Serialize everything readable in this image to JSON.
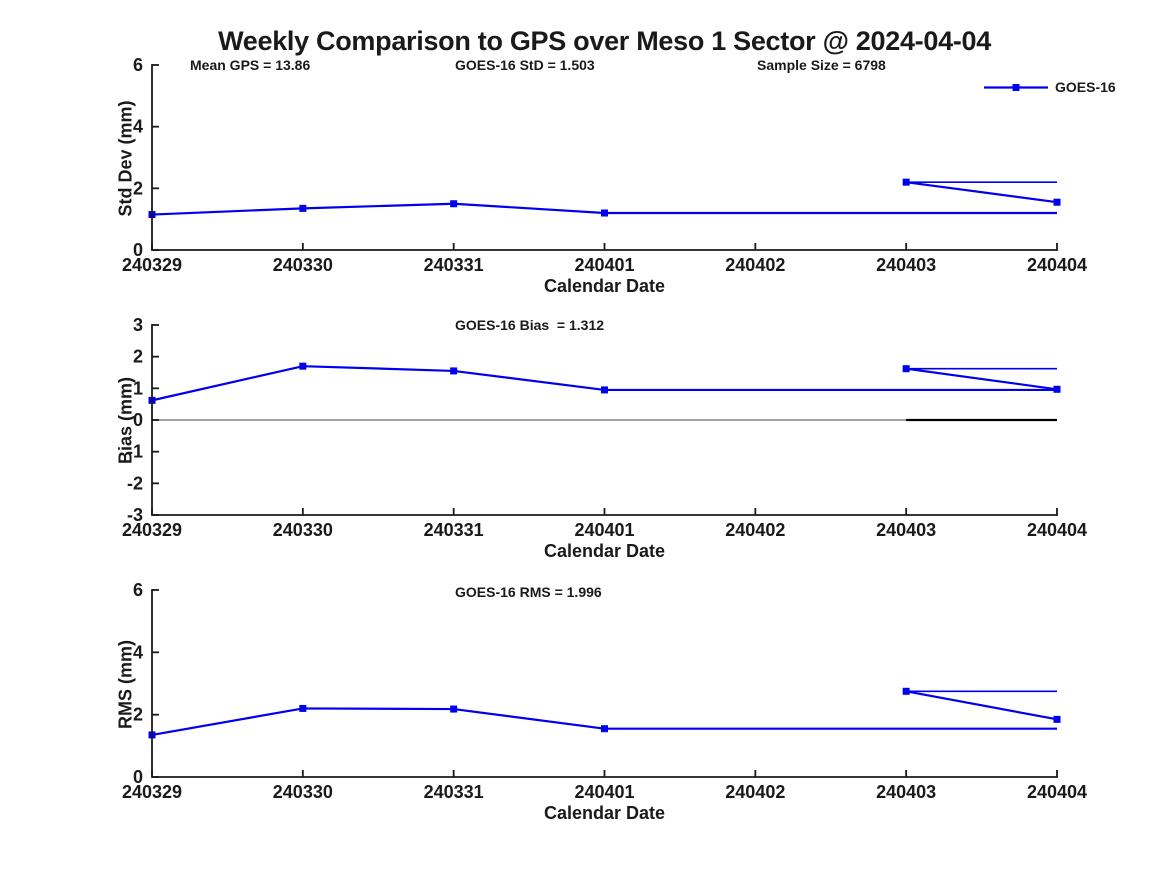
{
  "title": "Weekly Comparison to GPS over Meso 1 Sector @ 2024-04-04",
  "legend": {
    "label": "GOES-16",
    "position": "top-right",
    "box": "off"
  },
  "colors": {
    "line": "#0000EE",
    "axis": "#1a1a1a",
    "text": "#1a1a1a",
    "zero_gray": "#808080",
    "zero_black": "#000000",
    "background": "#ffffff"
  },
  "chart_data": [
    {
      "name": "std-dev",
      "type": "line",
      "series_name": "GOES-16",
      "annotations": [
        "Mean GPS = 13.86",
        "GOES-16 StD = 1.503",
        "Sample Size = 6798"
      ],
      "xlabel": "Calendar Date",
      "ylabel": "Std Dev (mm)",
      "ylim": [
        0,
        6
      ],
      "yticks": [
        6,
        4,
        2,
        0
      ],
      "grid": "off",
      "x_categories": [
        "240329",
        "240330",
        "240331",
        "240401",
        "240402",
        "240403",
        "240404"
      ],
      "segments": [
        {
          "points": [
            [
              0,
              1.15
            ],
            [
              1,
              1.35
            ],
            [
              2,
              1.5
            ],
            [
              3,
              1.2
            ],
            [
              6,
              1.2
            ]
          ],
          "markers": [
            true,
            true,
            true,
            true,
            false
          ],
          "width": 2.2
        },
        {
          "points": [
            [
              5,
              2.2
            ],
            [
              6,
              2.2
            ]
          ],
          "markers": [
            false,
            false
          ],
          "width": 1.6
        },
        {
          "points": [
            [
              5,
              2.2
            ],
            [
              6,
              1.55
            ]
          ],
          "markers": [
            true,
            true
          ],
          "width": 2.2
        }
      ]
    },
    {
      "name": "bias",
      "type": "line",
      "series_name": "GOES-16",
      "annotation": "GOES-16 Bias  = 1.312",
      "xlabel": "Calendar Date",
      "ylabel": "Bias (mm)",
      "ylim": [
        -3,
        3
      ],
      "yticks": [
        3,
        2,
        1,
        0,
        -1,
        -2,
        -3
      ],
      "grid": "off",
      "x_categories": [
        "240329",
        "240330",
        "240331",
        "240401",
        "240402",
        "240403",
        "240404"
      ],
      "zero_line": {
        "gray_span": [
          0,
          6
        ],
        "black_span": [
          5,
          6
        ]
      },
      "segments": [
        {
          "points": [
            [
              0,
              0.62
            ],
            [
              1,
              1.7
            ],
            [
              2,
              1.55
            ],
            [
              3,
              0.95
            ],
            [
              6,
              0.95
            ]
          ],
          "markers": [
            true,
            true,
            true,
            true,
            false
          ],
          "width": 2.2
        },
        {
          "points": [
            [
              5,
              1.62
            ],
            [
              6,
              1.62
            ]
          ],
          "markers": [
            false,
            false
          ],
          "width": 1.6
        },
        {
          "points": [
            [
              5,
              1.62
            ],
            [
              6,
              0.97
            ]
          ],
          "markers": [
            true,
            true
          ],
          "width": 2.2
        }
      ]
    },
    {
      "name": "rms",
      "type": "line",
      "series_name": "GOES-16",
      "annotation": "GOES-16 RMS = 1.996",
      "xlabel": "Calendar Date",
      "ylabel": "RMS (mm)",
      "ylim": [
        0,
        6
      ],
      "yticks": [
        6,
        4,
        2,
        0
      ],
      "grid": "off",
      "x_categories": [
        "240329",
        "240330",
        "240331",
        "240401",
        "240402",
        "240403",
        "240404"
      ],
      "segments": [
        {
          "points": [
            [
              0,
              1.35
            ],
            [
              1,
              2.2
            ],
            [
              2,
              2.18
            ],
            [
              3,
              1.55
            ],
            [
              6,
              1.55
            ]
          ],
          "markers": [
            true,
            true,
            true,
            true,
            false
          ],
          "width": 2.2
        },
        {
          "points": [
            [
              5,
              2.75
            ],
            [
              6,
              2.75
            ]
          ],
          "markers": [
            false,
            false
          ],
          "width": 1.6
        },
        {
          "points": [
            [
              5,
              2.75
            ],
            [
              6,
              1.85
            ]
          ],
          "markers": [
            true,
            true
          ],
          "width": 2.2
        }
      ]
    }
  ]
}
